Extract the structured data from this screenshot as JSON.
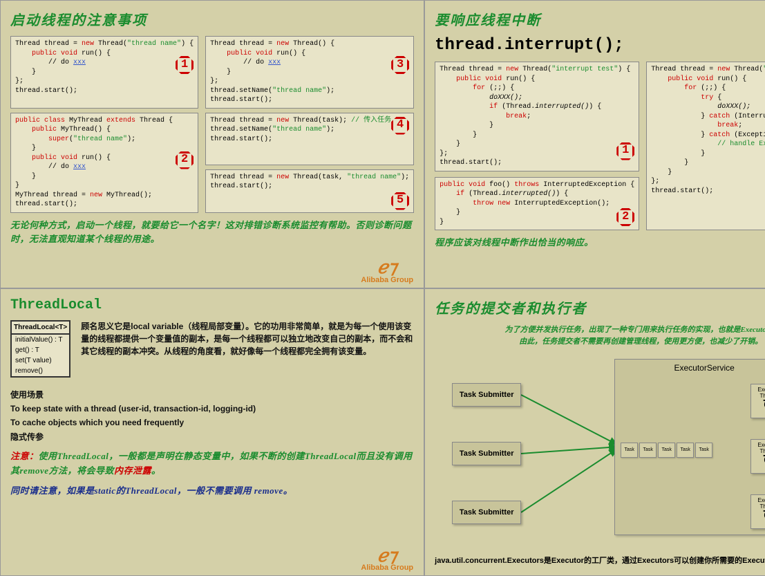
{
  "colors": {
    "bg": "#d4d0a8",
    "codebg": "#e8e4c8",
    "green": "#1a8c2e",
    "red": "#cc0000",
    "orange": "#d67b1e",
    "blue": "#3355cc"
  },
  "logo": "Alibaba Group",
  "q1": {
    "title": "启动线程的注意事项",
    "note": "无论何种方式，启动一个线程，就要给它一个名字！这对排错诊断系统监控有帮助。否则诊断问题时，无法直观知道某个线程的用途。",
    "boxes": [
      {
        "num": "1",
        "code": "Thread thread = <r>new</r> Thread(<g>\"thread name\"</g>) {\n    <r>public void</r> run() {\n        // do <bu>xxx</bu>\n    }\n};\nthread.start();"
      },
      {
        "num": "3",
        "code": "Thread thread = <r>new</r> Thread() {\n    <r>public void</r> run() {\n        // do <bu>xxx</bu>\n    }\n};\nthread.setName(<g>\"thread name\"</g>);\nthread.start();"
      },
      {
        "num": "2",
        "code": "<r>public class</r> MyThread <r>extends</r> Thread {\n    <r>public</r> MyThread() {\n        <r>super</r>(<g>\"thread name\"</g>);\n    }\n    <r>public void</r> run() {\n        // do <bu>xxx</bu>\n    }\n}\nMyThread thread = <r>new</r> MyThread();\nthread.start();"
      },
      {
        "num": "4",
        "code": "Thread thread = <r>new</r> Thread(task); <g>// 传入任务</g>\nthread.setName(<g>\"thread name\"</g>);\nthread.start();"
      },
      {
        "num": "5",
        "code": "Thread thread = <r>new</r> Thread(task, <g>\"thread name\"</g>);\nthread.start();"
      }
    ]
  },
  "q2": {
    "title": "要响应线程中断",
    "heading": "thread.interrupt();",
    "note": "程序应该对线程中断作出恰当的响应。",
    "boxes": [
      {
        "num": "1",
        "code": "Thread thread = <r>new</r> Thread(<g>\"interrupt test\"</g>) {\n    <r>public void</r> run() {\n        <r>for</r> (;;) {\n            <i>doXXX();</i>\n            <r>if</r> (Thread.<i>interrupted()</i>) {\n                <r>break</r>;\n            }\n        }\n    }\n};\nthread.start();"
      },
      {
        "num": "3",
        "code": "Thread thread = <r>new</r> Thread(<g>\"interrupt test\"</g>) {\n    <r>public void</r> run() {\n        <r>for</r> (;;) {\n            <r>try</r> {\n                <i>doXXX();</i>\n            } <r>catch</r> (InterruptedException e) {\n                <r>break</r>;\n            } <r>catch</r> (Exception e) {\n                <g>// handle Exception</g>\n            }\n        }\n    }\n};\nthread.start();"
      },
      {
        "num": "2",
        "code": "<r>public void</r> foo() <r>throws</r> InterruptedException {\n    <r>if</r> (Thread.<i>interrupted()</i>) {\n        <r>throw new</r> InterruptedException();\n    }\n}"
      }
    ]
  },
  "q3": {
    "title": "ThreadLocal",
    "table_header": "ThreadLocal<T>",
    "table_rows": [
      "initialValue() : T",
      "get() : T",
      "set(T value)",
      "remove()"
    ],
    "desc": "顾名思义它是local variable（线程局部变量）。它的功用非常简单，就是为每一个使用该变量的线程都提供一个变量值的副本，是每一个线程都可以独立地改变自己的副本，而不会和其它线程的副本冲突。从线程的角度看，就好像每一个线程都完全拥有该变量。",
    "scenario_title": "使用场景",
    "scenarios": [
      "To keep state with a thread (user-id, transaction-id, logging-id)",
      "To cache objects which you need frequently",
      "隐式传参"
    ],
    "warn_label": "注意：",
    "warn_text": "使用ThreadLocal，一般都是声明在静态变量中，如果不断的创建ThreadLocal而且没有调用其remove方法，将会导致",
    "warn_leak": "内存泄露",
    "warn2": "同时请注意，如果是static的ThreadLocal，一般不需要调用 remove。"
  },
  "q4": {
    "title": "任务的提交者和执行者",
    "intro1": "为了方便并发执行任务，出现了一种专门用来执行任务的实现，也就是Executor。",
    "intro2": "由此，任务提交者不需要再创建管理线程，使用更方便，也减少了开销。",
    "submitter": "Task Submitter",
    "service": "ExecutorService",
    "task": "Task",
    "thread": "Executor\nThread",
    "submitter_y": [
      40,
      125,
      210
    ],
    "thread_y": [
      35,
      115,
      195
    ],
    "task_count": 5,
    "footer": "java.util.concurrent.Executors是Executor的工厂类，通过Executors可以创建你所需要的Executor。"
  }
}
